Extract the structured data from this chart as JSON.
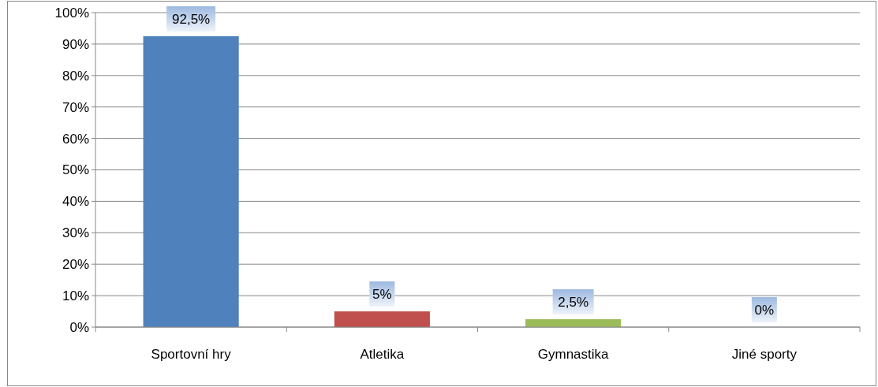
{
  "chart_data": {
    "type": "bar",
    "categories": [
      "Sportovní hry",
      "Atletika",
      "Gymnastika",
      "Jiné sporty"
    ],
    "values": [
      92.5,
      5,
      2.5,
      0
    ],
    "colors": [
      "#4f81bd",
      "#c0504d",
      "#9bbb59",
      "#8064a2"
    ],
    "value_labels": [
      "92,5%",
      "5%",
      "2,5%",
      "0%"
    ],
    "ylim": [
      0,
      100
    ],
    "yticks": [
      {
        "value": 0,
        "label": "0%"
      },
      {
        "value": 10,
        "label": "10%"
      },
      {
        "value": 20,
        "label": "20%"
      },
      {
        "value": 30,
        "label": "30%"
      },
      {
        "value": 40,
        "label": "40%"
      },
      {
        "value": 50,
        "label": "50%"
      },
      {
        "value": 60,
        "label": "60%"
      },
      {
        "value": 70,
        "label": "70%"
      },
      {
        "value": 80,
        "label": "80%"
      },
      {
        "value": 90,
        "label": "90%"
      },
      {
        "value": 100,
        "label": "100%"
      }
    ],
    "grid": "y"
  }
}
